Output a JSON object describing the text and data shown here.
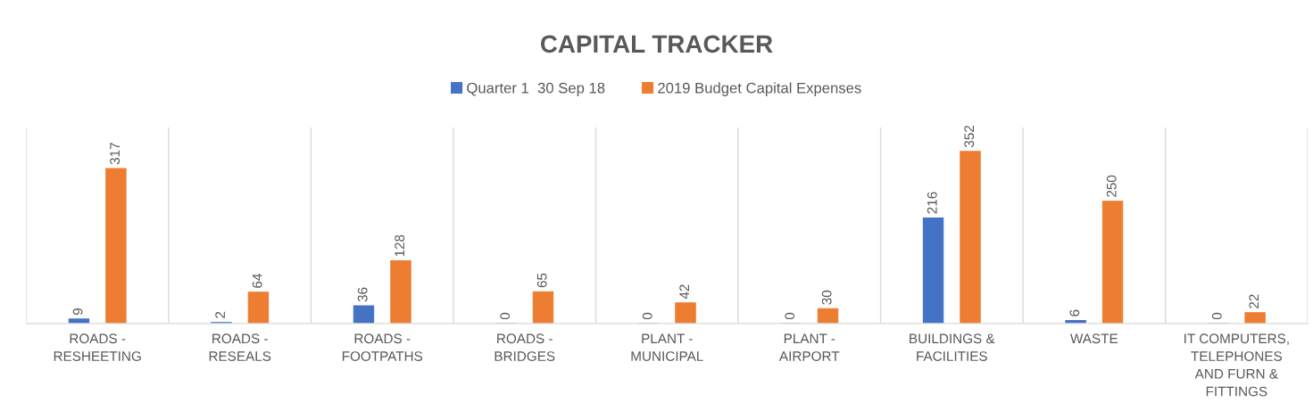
{
  "chart_data": {
    "type": "bar",
    "title": "CAPITAL TRACKER",
    "categories": [
      "ROADS -\nRESHEETING",
      "ROADS -\nRESEALS",
      "ROADS -\nFOOTPATHS",
      "ROADS -\nBRIDGES",
      "PLANT -\nMUNICIPAL",
      "PLANT -\nAIRPORT",
      "BUILDINGS &\nFACILITIES",
      "WASTE",
      "IT COMPUTERS,\nTELEPHONES\nAND FURN &\nFITTINGS"
    ],
    "series": [
      {
        "name": "Quarter 1  30 Sep 18",
        "color": "#4472c4",
        "values": [
          9,
          2,
          36,
          0,
          0,
          0,
          216,
          6,
          0
        ]
      },
      {
        "name": "2019 Budget Capital Expenses",
        "color": "#ed7d31",
        "values": [
          317,
          64,
          128,
          65,
          42,
          30,
          352,
          250,
          22
        ]
      }
    ],
    "data_labels": true,
    "legend": "top",
    "grid": "x",
    "tick_labels": "x"
  }
}
